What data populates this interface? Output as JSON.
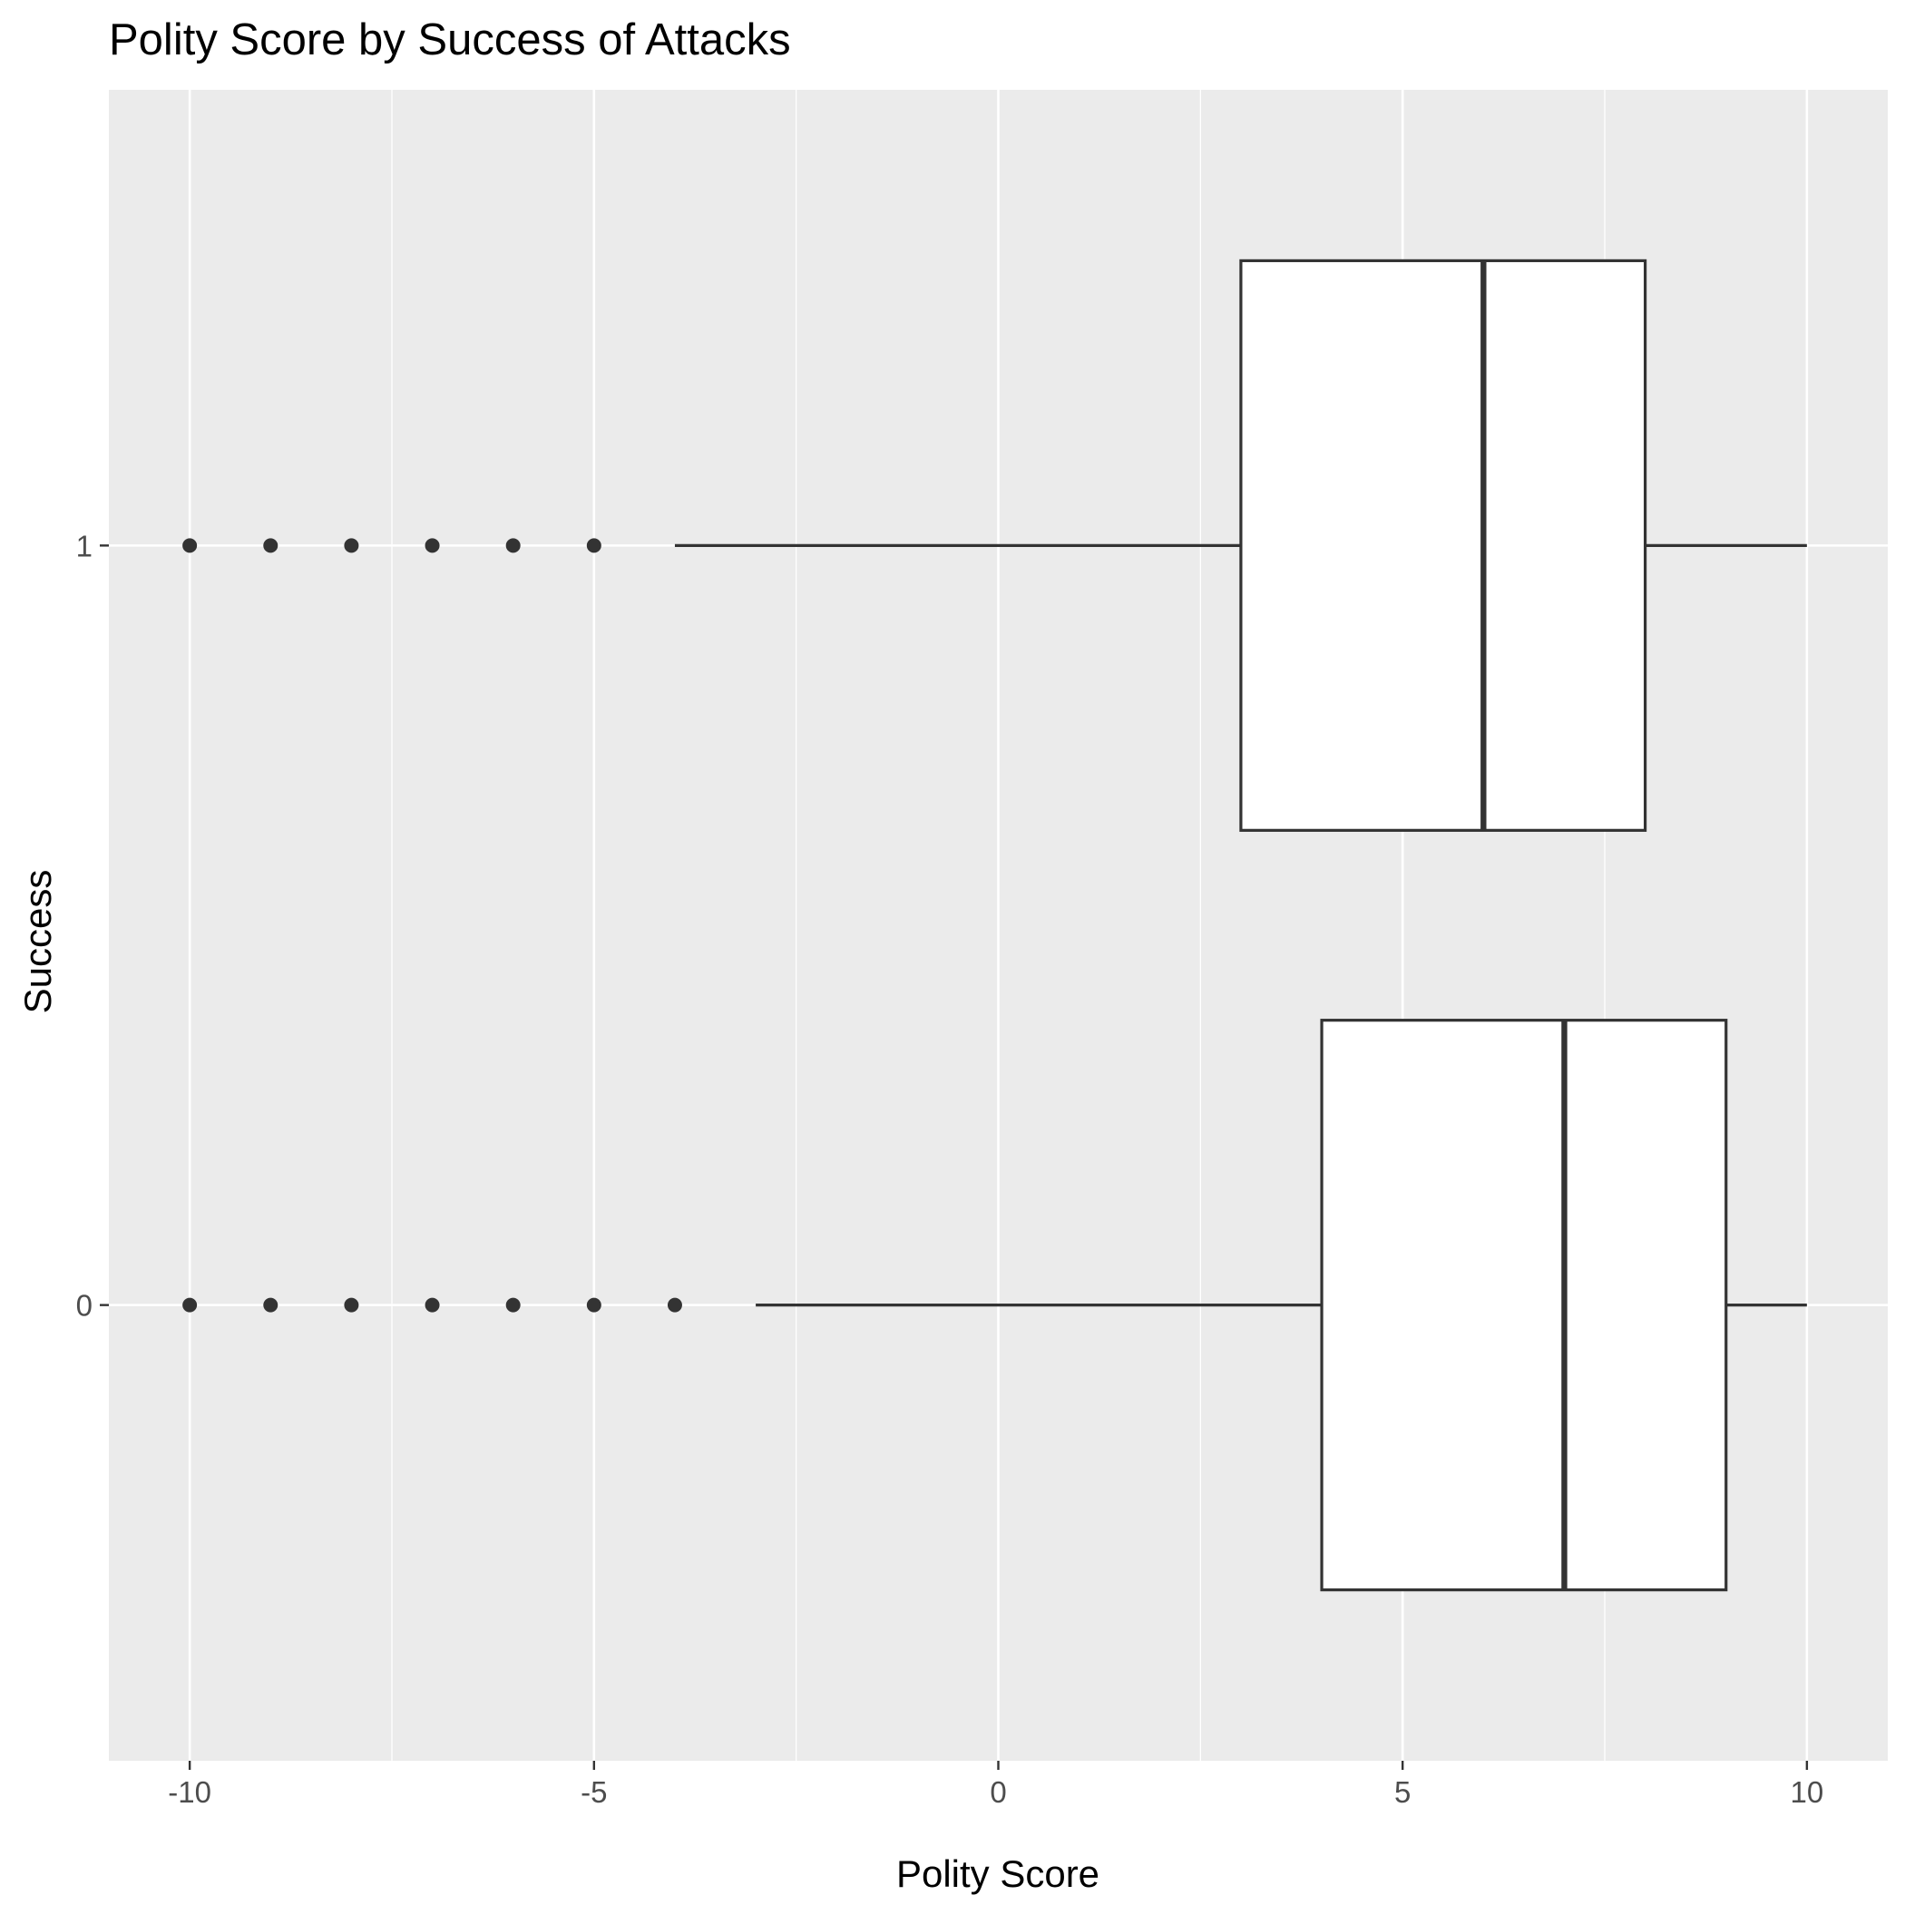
{
  "chart_data": {
    "type": "boxplot",
    "orientation": "horizontal",
    "title": "Polity Score by Success of Attacks",
    "xlabel": "Polity Score",
    "ylabel": "Success",
    "xlim": [
      -11,
      11
    ],
    "x_ticks": [
      -10,
      -5,
      0,
      5,
      10
    ],
    "x_tick_labels": [
      "-10",
      "-5",
      "0",
      "5",
      "10"
    ],
    "x_minor_ticks": [
      -7.5,
      -2.5,
      2.5,
      7.5
    ],
    "categories": [
      "0",
      "1"
    ],
    "grid": true,
    "legend": "none",
    "colors": {
      "panel_background": "#ebebeb",
      "grid": "#ffffff",
      "box_fill": "#ffffff",
      "box_stroke": "#333333",
      "outlier": "#333333",
      "tick_label": "#4d4d4d",
      "tick_mark": "#333333"
    },
    "boxes": [
      {
        "category": "0",
        "whisker_low": -3,
        "q1": 4,
        "median": 7,
        "q3": 9,
        "whisker_high": 10,
        "outliers": [
          -10,
          -9,
          -8,
          -7,
          -6,
          -5,
          -4
        ]
      },
      {
        "category": "1",
        "whisker_low": -4,
        "q1": 3,
        "median": 6,
        "q3": 8,
        "whisker_high": 10,
        "outliers": [
          -10,
          -9,
          -8,
          -7,
          -6,
          -5
        ]
      }
    ]
  }
}
